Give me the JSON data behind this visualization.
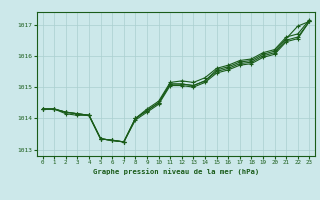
{
  "title": "Graphe pression niveau de la mer (hPa)",
  "background_color": "#cce8ea",
  "grid_color": "#aacfcf",
  "line_color": "#1a5c1a",
  "xlim": [
    -0.5,
    23.5
  ],
  "ylim": [
    1012.8,
    1017.4
  ],
  "yticks": [
    1013,
    1014,
    1015,
    1016,
    1017
  ],
  "xticks": [
    0,
    1,
    2,
    3,
    4,
    5,
    6,
    7,
    8,
    9,
    10,
    11,
    12,
    13,
    14,
    15,
    16,
    17,
    18,
    19,
    20,
    21,
    22,
    23
  ],
  "series": [
    [
      1014.3,
      1014.3,
      1014.2,
      1014.15,
      1014.1,
      1013.35,
      1013.3,
      1013.25,
      1014.0,
      1014.25,
      1014.5,
      1015.1,
      1015.1,
      1015.05,
      1015.2,
      1015.5,
      1015.6,
      1015.75,
      1015.8,
      1016.0,
      1016.1,
      1016.5,
      1016.6,
      1017.1
    ],
    [
      1014.3,
      1014.3,
      1014.15,
      1014.1,
      1014.1,
      1013.35,
      1013.3,
      1013.25,
      1013.95,
      1014.2,
      1014.45,
      1015.05,
      1015.05,
      1015.0,
      1015.15,
      1015.45,
      1015.55,
      1015.7,
      1015.75,
      1015.95,
      1016.05,
      1016.45,
      1016.55,
      1017.1
    ],
    [
      1014.3,
      1014.3,
      1014.2,
      1014.15,
      1014.1,
      1013.35,
      1013.3,
      1013.25,
      1014.0,
      1014.3,
      1014.55,
      1015.15,
      1015.2,
      1015.15,
      1015.3,
      1015.6,
      1015.7,
      1015.85,
      1015.9,
      1016.1,
      1016.2,
      1016.6,
      1016.7,
      1017.15
    ],
    [
      1014.3,
      1014.3,
      1014.2,
      1014.15,
      1014.1,
      1013.35,
      1013.3,
      1013.25,
      1014.0,
      1014.25,
      1014.5,
      1015.1,
      1015.1,
      1015.05,
      1015.2,
      1015.55,
      1015.65,
      1015.8,
      1015.85,
      1016.05,
      1016.15,
      1016.55,
      1016.95,
      1017.1
    ]
  ],
  "figsize": [
    3.2,
    2.0
  ],
  "dpi": 100
}
